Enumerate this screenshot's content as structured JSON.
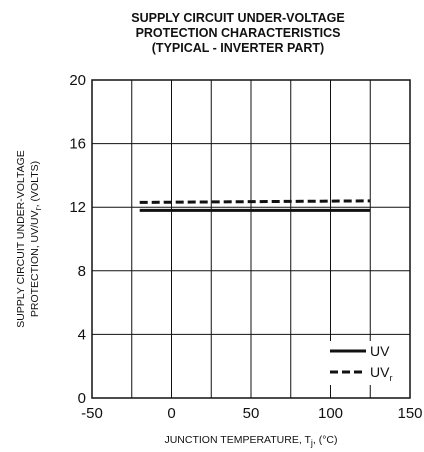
{
  "chart_data": {
    "type": "line",
    "title_lines": [
      "SUPPLY CIRCUIT UNDER-VOLTAGE",
      "PROTECTION CHARACTERISTICS",
      "(TYPICAL - INVERTER PART)"
    ],
    "xlabel": {
      "prefix": "JUNCTION TEMPERATURE, T",
      "subscript": "j",
      "suffix": ", (°C)"
    },
    "ylabel": {
      "line1": "SUPPLY CIRCUIT UNDER-VOLTAGE",
      "line2_prefix": "PROTECTION, UV/UV",
      "line2_subscript": "r",
      "line2_suffix": ", (VOLTS)"
    },
    "xlim": [
      -50,
      150
    ],
    "ylim": [
      0,
      20
    ],
    "x_ticks": [
      -50,
      0,
      50,
      100,
      150
    ],
    "y_ticks": [
      0,
      4,
      8,
      12,
      16,
      20
    ],
    "x_grid": [
      -25,
      0,
      25,
      50,
      75,
      100,
      125
    ],
    "y_grid": [
      4,
      8,
      12,
      16
    ],
    "grid": true,
    "legend_position": "bottom-right",
    "series": [
      {
        "name": "UV",
        "subscript": "",
        "style": "solid",
        "color": "#111111",
        "x": [
          -20,
          125
        ],
        "y": [
          11.8,
          11.8
        ]
      },
      {
        "name": "UV",
        "subscript": "r",
        "style": "dashed",
        "color": "#111111",
        "x": [
          -20,
          125
        ],
        "y": [
          12.3,
          12.4
        ]
      }
    ]
  }
}
